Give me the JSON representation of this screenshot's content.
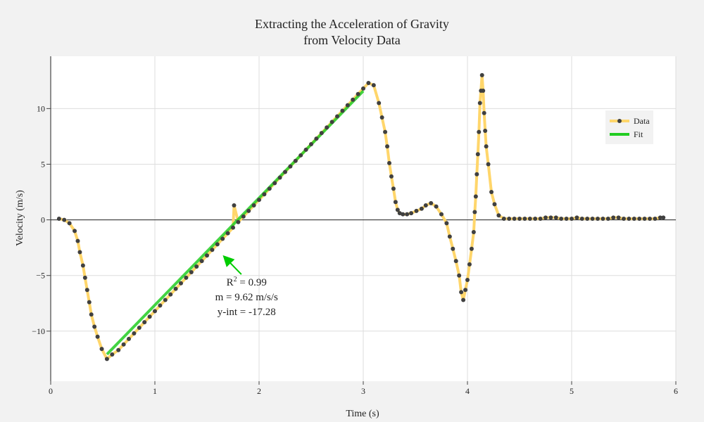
{
  "chart_data": {
    "type": "line",
    "title_line1": "Extracting the Acceleration of Gravity",
    "title_line2": "from Velocity Data",
    "xlabel": "Time (s)",
    "ylabel": "Velocity (m/s)",
    "xlim": [
      0,
      6
    ],
    "ylim": [
      -14.5,
      14.7
    ],
    "xticks": [
      0,
      1,
      2,
      3,
      4,
      5,
      6
    ],
    "xtick_labels": [
      "0",
      "1",
      "2",
      "3",
      "4",
      "5",
      "6"
    ],
    "yticks": [
      -10,
      -5,
      0,
      5,
      10
    ],
    "ytick_labels": [
      "−10",
      "−5",
      "0",
      "5",
      "10"
    ],
    "grid": true,
    "legend_position": "top-right",
    "colors": {
      "data_line": "#ffd66b",
      "data_marker": "#404040",
      "fit_line": "#22cc22",
      "arrow": "#00cc00",
      "grid": "#dddddd",
      "zero_line": "#222222",
      "background": "#f2f2f2",
      "plot_background": "#ffffff"
    },
    "series": [
      {
        "name": "Data",
        "x": [
          0.08,
          0.13,
          0.18,
          0.23,
          0.26,
          0.28,
          0.31,
          0.33,
          0.35,
          0.37,
          0.39,
          0.42,
          0.45,
          0.49,
          0.54,
          0.59,
          0.65,
          0.7,
          0.75,
          0.8,
          0.85,
          0.9,
          0.95,
          1.0,
          1.05,
          1.1,
          1.15,
          1.2,
          1.25,
          1.3,
          1.35,
          1.4,
          1.45,
          1.5,
          1.55,
          1.6,
          1.65,
          1.7,
          1.75,
          1.76,
          1.8,
          1.85,
          1.9,
          1.95,
          2.0,
          2.05,
          2.1,
          2.15,
          2.2,
          2.25,
          2.3,
          2.35,
          2.4,
          2.45,
          2.5,
          2.55,
          2.6,
          2.65,
          2.7,
          2.75,
          2.8,
          2.85,
          2.9,
          2.95,
          3.0,
          3.05,
          3.1,
          3.15,
          3.18,
          3.21,
          3.23,
          3.25,
          3.27,
          3.29,
          3.31,
          3.33,
          3.35,
          3.38,
          3.42,
          3.46,
          3.51,
          3.56,
          3.6,
          3.65,
          3.7,
          3.75,
          3.8,
          3.83,
          3.86,
          3.89,
          3.92,
          3.94,
          3.96,
          3.98,
          4.0,
          4.02,
          4.04,
          4.06,
          4.07,
          4.08,
          4.09,
          4.1,
          4.11,
          4.12,
          4.13,
          4.14,
          4.15,
          4.16,
          4.17,
          4.18,
          4.2,
          4.23,
          4.26,
          4.3,
          4.35,
          4.4,
          4.45,
          4.5,
          4.55,
          4.6,
          4.65,
          4.7,
          4.75,
          4.8,
          4.85,
          4.9,
          4.95,
          5.0,
          5.05,
          5.1,
          5.15,
          5.2,
          5.25,
          5.3,
          5.35,
          5.4,
          5.45,
          5.5,
          5.55,
          5.6,
          5.65,
          5.7,
          5.75,
          5.8,
          5.85,
          5.88
        ],
        "y": [
          0.1,
          0.0,
          -0.3,
          -1.0,
          -1.9,
          -2.9,
          -4.1,
          -5.2,
          -6.3,
          -7.4,
          -8.5,
          -9.6,
          -10.5,
          -11.6,
          -12.5,
          -12.1,
          -11.7,
          -11.2,
          -10.7,
          -10.2,
          -9.7,
          -9.2,
          -8.7,
          -8.2,
          -7.7,
          -7.2,
          -6.7,
          -6.2,
          -5.7,
          -5.2,
          -4.7,
          -4.2,
          -3.7,
          -3.2,
          -2.7,
          -2.2,
          -1.7,
          -1.2,
          -0.7,
          1.3,
          -0.2,
          0.3,
          0.8,
          1.3,
          1.8,
          2.3,
          2.8,
          3.3,
          3.8,
          4.3,
          4.8,
          5.3,
          5.8,
          6.3,
          6.8,
          7.3,
          7.8,
          8.3,
          8.8,
          9.3,
          9.8,
          10.3,
          10.8,
          11.3,
          11.8,
          12.3,
          12.1,
          10.5,
          9.2,
          7.9,
          6.6,
          5.1,
          3.9,
          2.8,
          1.6,
          0.9,
          0.6,
          0.5,
          0.5,
          0.6,
          0.8,
          1.0,
          1.3,
          1.5,
          1.2,
          0.5,
          -0.3,
          -1.5,
          -2.6,
          -3.7,
          -5.0,
          -6.5,
          -7.2,
          -6.3,
          -5.4,
          -4.0,
          -2.6,
          -1.1,
          0.7,
          2.1,
          4.1,
          5.9,
          7.9,
          10.5,
          11.6,
          13.0,
          11.6,
          9.6,
          8.0,
          6.6,
          5.0,
          2.5,
          1.4,
          0.4,
          0.1,
          0.1,
          0.1,
          0.1,
          0.1,
          0.1,
          0.1,
          0.1,
          0.2,
          0.2,
          0.2,
          0.1,
          0.1,
          0.1,
          0.2,
          0.1,
          0.1,
          0.1,
          0.1,
          0.1,
          0.1,
          0.2,
          0.2,
          0.1,
          0.1,
          0.1,
          0.1,
          0.1,
          0.1,
          0.1,
          0.2,
          0.2
        ]
      },
      {
        "name": "Fit",
        "x": [
          0.54,
          3.0
        ],
        "y": [
          -12.08,
          11.58
        ]
      }
    ],
    "annotations": [
      {
        "r_label": "R",
        "r_sup": "2",
        "r_value": " = 0.99",
        "slope": "m = 9.62 m/s/s",
        "intercept": "y-int = -17.28"
      }
    ],
    "annotation_arrow": {
      "tail": [
        1.83,
        -4.9
      ],
      "head": [
        1.68,
        -3.45
      ]
    }
  }
}
